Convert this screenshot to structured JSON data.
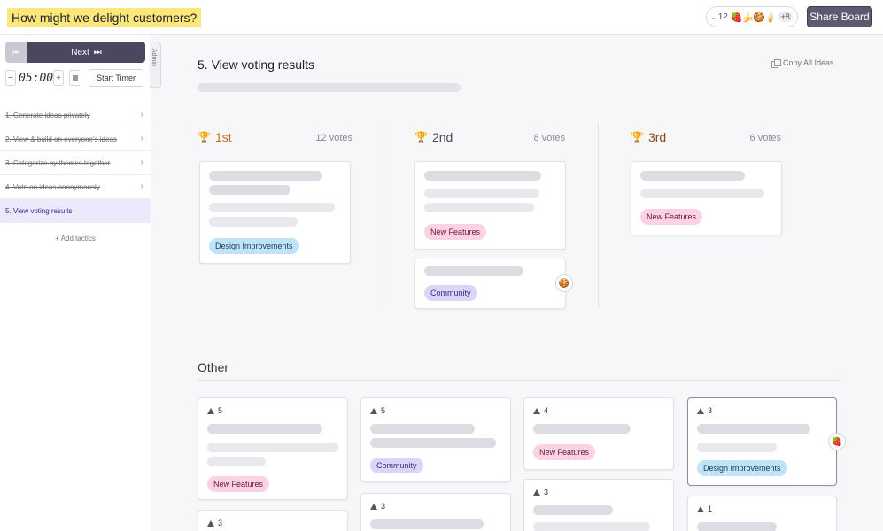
{
  "header": {
    "board_title": "How might we delight customers?",
    "participants_count": "12",
    "participant_emojis": [
      "🍓",
      "🍌",
      "🍪",
      "🍦"
    ],
    "participants_more": "+8",
    "share_label": "Share Board"
  },
  "sidebar": {
    "next_label": "Next",
    "timer_value": "05:00",
    "minus_label": "−",
    "plus_label": "+",
    "start_timer_label": "Start Timer",
    "admin_label": "Admin",
    "tactics": [
      {
        "label": "1. Generate ideas privately",
        "done": true
      },
      {
        "label": "2. View & build on everyone's ideas",
        "done": true
      },
      {
        "label": "3. Categorize by themes together",
        "done": true
      },
      {
        "label": "4. Vote on ideas anonymously",
        "done": true
      },
      {
        "label": "5. View voting results",
        "active": true
      }
    ],
    "add_tactics_label": "+ Add tactics"
  },
  "main": {
    "title": "5.  View voting results",
    "copy_label": "Copy All Ideas",
    "podium": [
      {
        "rank": "1st",
        "votes": "12 votes",
        "color": "#b7791f"
      },
      {
        "rank": "2nd",
        "votes": "8 votes",
        "color": "#4a4a55"
      },
      {
        "rank": "3rd",
        "votes": "6 votes",
        "color": "#8a4b14"
      }
    ],
    "podium_tags": {
      "first": "Design Improvements",
      "second_a": "New Features",
      "second_b": "Community",
      "third": "New Features"
    },
    "podium_reaction": "🍪",
    "other_heading": "Other",
    "other_cards": [
      {
        "votes": "5",
        "tag": "New Features"
      },
      {
        "votes": "5",
        "tag": "Community"
      },
      {
        "votes": "4",
        "tag": "New Features"
      },
      {
        "votes": "3",
        "tag": "Design Improvements",
        "reaction": "🍓"
      },
      {
        "votes": "3"
      },
      {
        "votes": "3"
      },
      {
        "votes": "3"
      },
      {
        "votes": "1"
      }
    ]
  }
}
